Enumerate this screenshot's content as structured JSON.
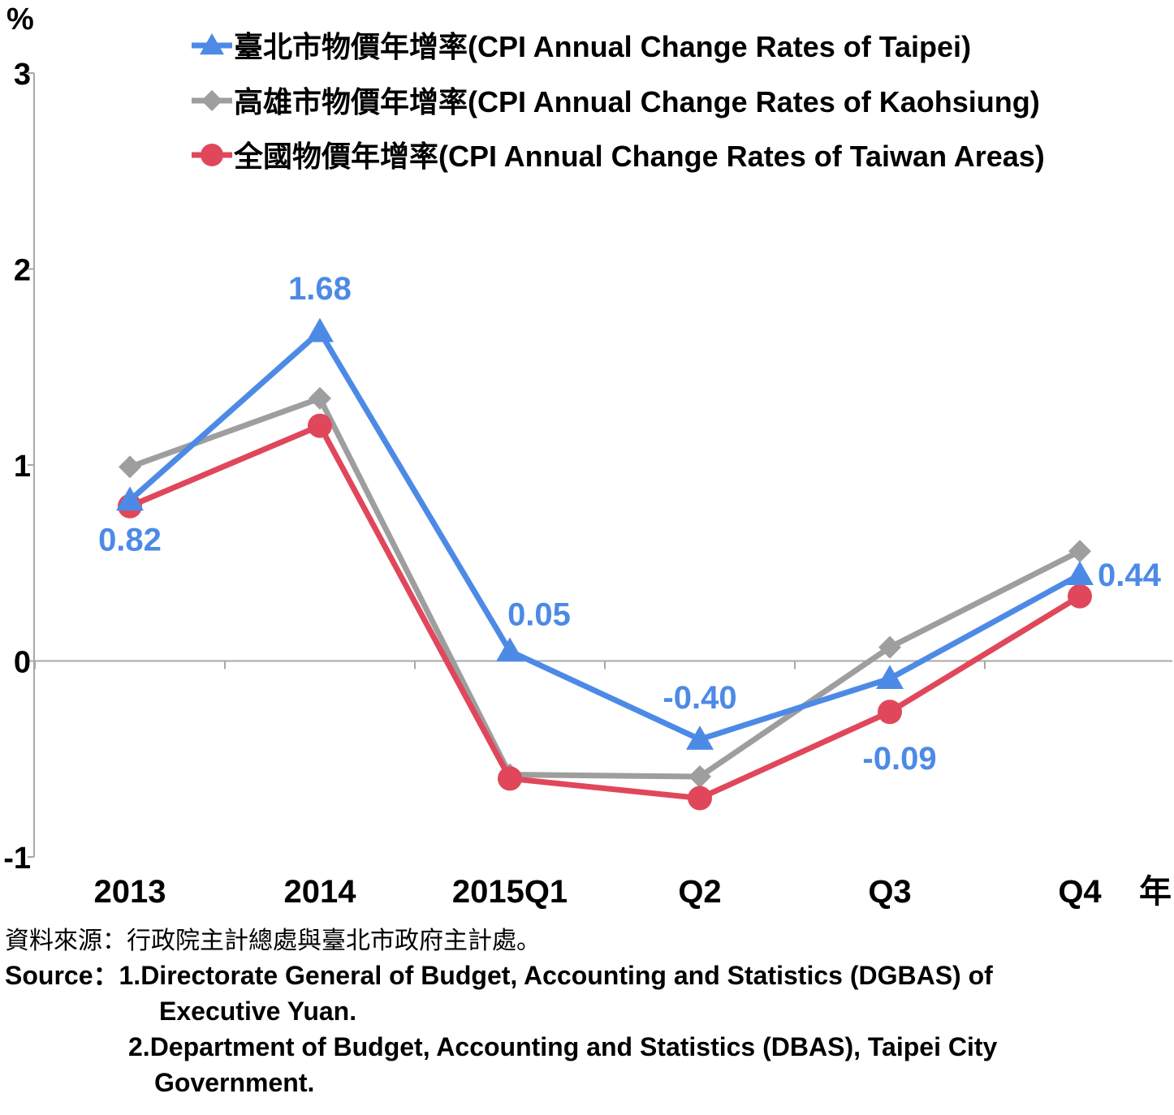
{
  "chart_data": {
    "type": "line",
    "y_unit_label": "%",
    "x_unit_label": "年",
    "categories": [
      "2013",
      "2014",
      "2015Q1",
      "Q2",
      "Q3",
      "Q4"
    ],
    "ylim": [
      -1,
      3
    ],
    "yticks": [
      "-1",
      "0",
      "1",
      "2",
      "3"
    ],
    "series": [
      {
        "name": "臺北市物價年增率(CPI Annual Change Rates of Taipei)",
        "color": "#4d8ae6",
        "marker": "triangle",
        "values": [
          0.82,
          1.68,
          0.05,
          -0.4,
          -0.09,
          0.44
        ],
        "labels": [
          "0.82",
          "1.68",
          "0.05",
          "-0.40",
          "-0.09",
          "0.44"
        ]
      },
      {
        "name": "高雄市物價年增率(CPI Annual Change Rates of Kaohsiung)",
        "color": "#9e9e9e",
        "marker": "diamond",
        "values": [
          0.99,
          1.34,
          -0.58,
          -0.59,
          0.07,
          0.56
        ]
      },
      {
        "name": "全國物價年增率(CPI Annual Change Rates of Taiwan Areas)",
        "color": "#e0475a",
        "marker": "circle",
        "values": [
          0.79,
          1.2,
          -0.6,
          -0.7,
          -0.26,
          0.33
        ]
      }
    ]
  },
  "source": {
    "zh": "資料來源：行政院主計總處與臺北市政府主計處。",
    "en_prefix": "Source：",
    "line1": "1.Directorate General of Budget, Accounting and Statistics (DGBAS) of",
    "line1b": "Executive Yuan.",
    "line2": "2.Department of Budget, Accounting and Statistics (DBAS), Taipei City",
    "line2b": "Government."
  }
}
